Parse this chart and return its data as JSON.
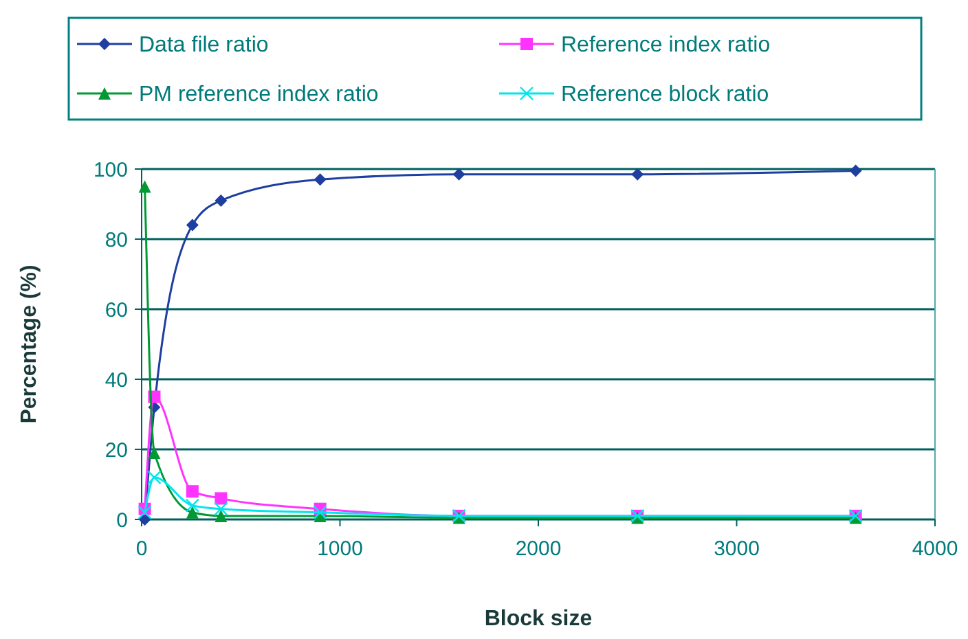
{
  "chart_data": {
    "type": "line",
    "xlabel": "Block size",
    "ylabel": "Percentage (%)",
    "x": [
      16,
      64,
      256,
      400,
      900,
      1600,
      2500,
      3600
    ],
    "xlim": [
      0,
      4000
    ],
    "xticks": [
      0,
      1000,
      2000,
      3000,
      4000
    ],
    "ylim": [
      0,
      100
    ],
    "yticks": [
      0,
      20,
      40,
      60,
      80,
      100
    ],
    "grid": "y",
    "legend": "top",
    "line_style": "solid",
    "series": [
      {
        "name": "Data file ratio",
        "color": "#1f3fa0",
        "marker": "diamond",
        "values": [
          0,
          32,
          84,
          91,
          97,
          98.5,
          98.5,
          99.5
        ]
      },
      {
        "name": "Reference index ratio",
        "color": "#ff33ff",
        "marker": "square",
        "values": [
          3,
          35,
          8,
          6,
          3,
          1,
          1,
          1
        ]
      },
      {
        "name": "PM reference index ratio",
        "color": "#009933",
        "marker": "triangle",
        "values": [
          95,
          19,
          2,
          1,
          1,
          0.5,
          0.5,
          0.5
        ]
      },
      {
        "name": "Reference block ratio",
        "color": "#00e5ee",
        "marker": "cross",
        "values": [
          2,
          12,
          4,
          3,
          2,
          1,
          1,
          1
        ]
      }
    ]
  }
}
